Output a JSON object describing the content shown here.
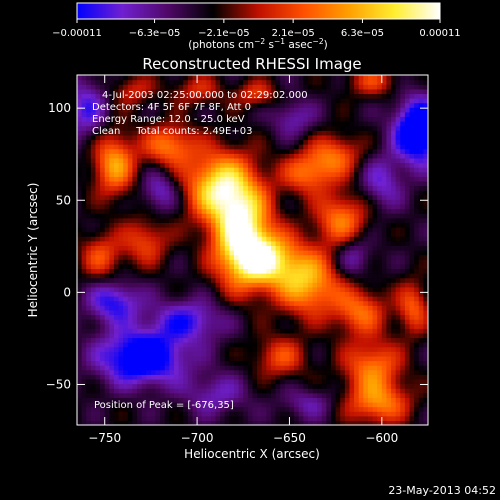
{
  "chart_data": {
    "type": "heatmap",
    "title": "Reconstructed RHESSI Image",
    "xlabel": "Heliocentric X (arcsec)",
    "ylabel": "Heliocentric Y (arcsec)",
    "xlim": [
      -765,
      -575
    ],
    "ylim": [
      -72,
      118
    ],
    "x_ticks": [
      -750,
      -700,
      -650,
      -600
    ],
    "x_tick_labels": [
      "−750",
      "−700",
      "−650",
      "−600"
    ],
    "y_ticks": [
      -50,
      0,
      50,
      100
    ],
    "y_tick_labels": [
      "−50",
      "0",
      "50",
      "100"
    ],
    "colorbar": {
      "ticks": [
        -0.00011,
        -6.3e-05,
        -2.1e-05,
        2.1e-05,
        6.3e-05,
        0.00011
      ],
      "tick_labels": [
        "−0.00011",
        "−6.3e−05",
        "−2.1e−05",
        "2.1e−05",
        "6.3e−05",
        "0.00011"
      ],
      "units_prefix": "(photons cm",
      "units_sup1": "−2",
      "units_mid1": " s",
      "units_sup2": "−1",
      "units_mid2": " asec",
      "units_sup3": "−2",
      "units_suffix": ")",
      "colormap": "blue-purple-black-red-orange-yellow-white",
      "stops": [
        "#0000ff",
        "#7020d0",
        "#500868",
        "#000000",
        "#c01000",
        "#ff5000",
        "#ffa000",
        "#ffee30",
        "#ffffff"
      ]
    },
    "info_lines": [
      "4-Jul-2003 02:25:00.000 to 02:29:02.000",
      "Detectors: 4F 5F 6F 7F 8F, Att 0",
      "Energy Range: 12.0 - 25.0 keV",
      "Clean     Total counts: 2.49E+03"
    ],
    "peak_label": "Position of Peak = [-676,35]",
    "peak_position": [
      -676,
      35
    ],
    "grid": false
  },
  "footer": {
    "timestamp": "23-May-2013 04:52"
  }
}
